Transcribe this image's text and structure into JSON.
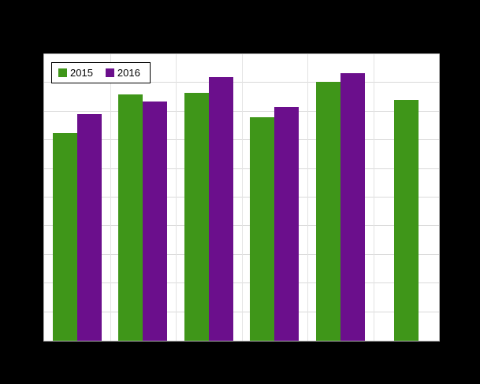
{
  "canvas": {
    "background_color": "#000000",
    "plot_background_color": "#ffffff",
    "gridline_color": "#d9d9d9"
  },
  "chart_data": {
    "type": "bar",
    "categories": [
      "",
      "",
      "",
      "",
      "",
      ""
    ],
    "series": [
      {
        "name": "2015",
        "color": "#3f9619",
        "values": [
          72.5,
          86,
          86.5,
          78,
          90.5,
          84
        ]
      },
      {
        "name": "2016",
        "color": "#6b0f8c",
        "values": [
          79,
          83.5,
          92,
          81.5,
          93.5,
          null
        ]
      }
    ],
    "title": "",
    "xlabel": "",
    "ylabel": "",
    "ylim": [
      0,
      100
    ],
    "grid_step": 10,
    "grid": true,
    "legend_position": "top-left inside plot",
    "legend_entries": [
      "2015",
      "2016"
    ]
  }
}
